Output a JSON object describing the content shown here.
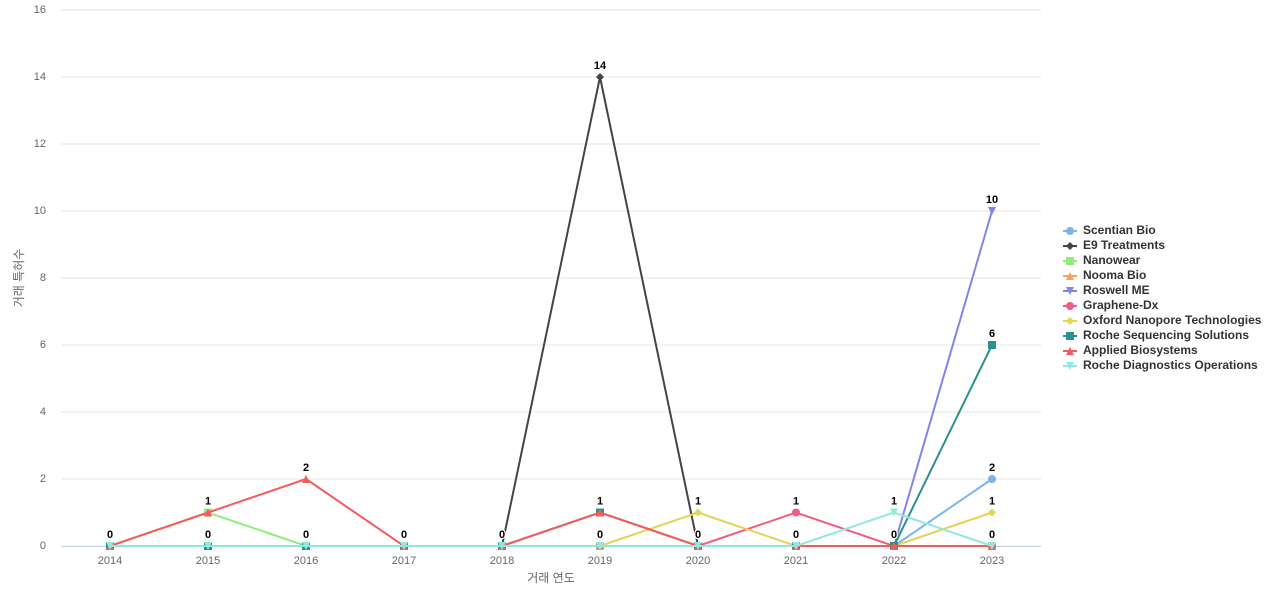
{
  "chart_data": {
    "type": "line",
    "x_label": "거래 연도",
    "y_label": "거래 특허수",
    "categories": [
      "2014",
      "2015",
      "2016",
      "2017",
      "2018",
      "2019",
      "2020",
      "2021",
      "2022",
      "2023"
    ],
    "ylim": [
      0,
      16
    ],
    "yticks": [
      0,
      2,
      4,
      6,
      8,
      10,
      12,
      14,
      16
    ],
    "grid": true,
    "legend": "right",
    "series": [
      {
        "name": "Scentian Bio",
        "color": "#7cb5ec",
        "marker": "circle",
        "values": [
          0,
          0,
          0,
          0,
          0,
          0,
          0,
          0,
          0,
          2
        ]
      },
      {
        "name": "E9 Treatments",
        "color": "#434348",
        "marker": "diamond",
        "values": [
          0,
          0,
          0,
          0,
          0,
          14,
          0,
          0,
          0,
          0
        ]
      },
      {
        "name": "Nanowear",
        "color": "#90ed7d",
        "marker": "square",
        "values": [
          0,
          1,
          0,
          0,
          0,
          0,
          0,
          0,
          0,
          0
        ]
      },
      {
        "name": "Nooma Bio",
        "color": "#f7a35c",
        "marker": "triangle",
        "values": [
          0,
          0,
          0,
          0,
          0,
          0,
          0,
          0,
          0,
          0
        ]
      },
      {
        "name": "Roswell ME",
        "color": "#8085e9",
        "marker": "triangle-down",
        "values": [
          0,
          0,
          0,
          0,
          0,
          0,
          0,
          0,
          0,
          10
        ]
      },
      {
        "name": "Graphene-Dx",
        "color": "#f15c80",
        "marker": "circle",
        "values": [
          0,
          0,
          0,
          0,
          0,
          0,
          0,
          1,
          0,
          0
        ]
      },
      {
        "name": "Oxford Nanopore Technologies",
        "color": "#e4d354",
        "marker": "diamond",
        "values": [
          0,
          0,
          0,
          0,
          0,
          0,
          1,
          0,
          0,
          1
        ]
      },
      {
        "name": "Roche Sequencing Solutions",
        "color": "#2b908f",
        "marker": "square",
        "values": [
          0,
          0,
          0,
          0,
          0,
          1,
          0,
          0,
          0,
          6
        ]
      },
      {
        "name": "Applied Biosystems",
        "color": "#f45b5b",
        "marker": "triangle",
        "values": [
          0,
          1,
          2,
          0,
          0,
          1,
          0,
          0,
          0,
          0
        ]
      },
      {
        "name": "Roche Diagnostics Operations",
        "color": "#91e8e1",
        "marker": "triangle-down",
        "values": [
          0,
          0,
          0,
          0,
          0,
          0,
          0,
          0,
          1,
          0
        ]
      }
    ]
  }
}
